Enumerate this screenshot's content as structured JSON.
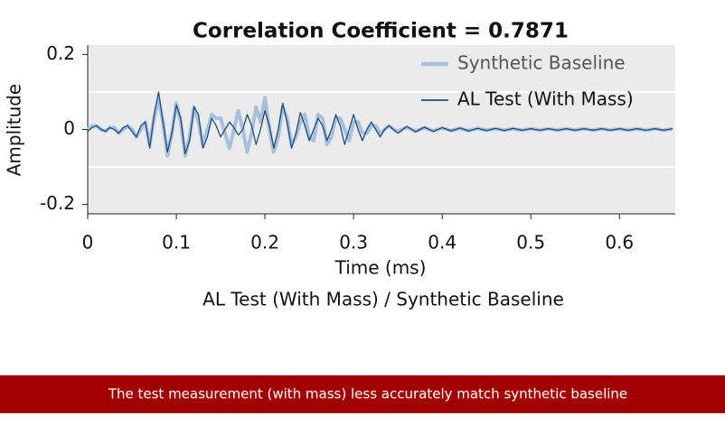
{
  "chart_data": {
    "type": "line",
    "title": "Correlation Coefficient = 0.7871",
    "subtitle": "AL Test (With Mass) / Synthetic Baseline",
    "x_label": "Time (ms)",
    "y_label": "Amplitude",
    "x": [
      0,
      0.005,
      0.01,
      0.015,
      0.02,
      0.025,
      0.03,
      0.035,
      0.04,
      0.045,
      0.05,
      0.055,
      0.06,
      0.065,
      0.07,
      0.075,
      0.08,
      0.085,
      0.09,
      0.095,
      0.1,
      0.105,
      0.11,
      0.115,
      0.12,
      0.125,
      0.13,
      0.135,
      0.14,
      0.145,
      0.15,
      0.155,
      0.16,
      0.165,
      0.17,
      0.175,
      0.18,
      0.185,
      0.19,
      0.195,
      0.2,
      0.205,
      0.21,
      0.215,
      0.22,
      0.225,
      0.23,
      0.235,
      0.24,
      0.245,
      0.25,
      0.255,
      0.26,
      0.265,
      0.27,
      0.275,
      0.28,
      0.285,
      0.29,
      0.295,
      0.3,
      0.305,
      0.31,
      0.315,
      0.32,
      0.325,
      0.33,
      0.335,
      0.34,
      0.345,
      0.35,
      0.36,
      0.37,
      0.38,
      0.39,
      0.4,
      0.41,
      0.42,
      0.43,
      0.44,
      0.45,
      0.46,
      0.47,
      0.48,
      0.49,
      0.5,
      0.51,
      0.52,
      0.53,
      0.54,
      0.55,
      0.56,
      0.57,
      0.58,
      0.59,
      0.6,
      0.61,
      0.62,
      0.63,
      0.64,
      0.65,
      0.66
    ],
    "series": [
      {
        "name": "Synthetic Baseline",
        "color": "#a9c0dd",
        "width": 4,
        "values": [
          0,
          0.01,
          0.01,
          0,
          -0.005,
          0.005,
          0.005,
          -0.01,
          0,
          0.01,
          0,
          -0.02,
          0,
          0.02,
          -0.04,
          0.03,
          0.08,
          0.02,
          -0.07,
          -0.01,
          0.07,
          0.02,
          -0.07,
          -0.02,
          0.06,
          0.02,
          -0.04,
          0,
          0.04,
          0.03,
          0.03,
          -0.01,
          -0.05,
          0,
          0.05,
          0,
          -0.06,
          -0.01,
          0.06,
          0.02,
          0.085,
          0,
          -0.06,
          -0.02,
          0.06,
          0.03,
          -0.04,
          -0.02,
          0.02,
          0.04,
          -0.02,
          -0.03,
          0.04,
          0.03,
          -0.04,
          -0.02,
          0.03,
          0.03,
          0,
          -0.03,
          0.02,
          0.02,
          -0.01,
          -0.01,
          0.01,
          0.01,
          -0.01,
          0,
          0.01,
          0,
          -0.005,
          0.006,
          -0.005,
          0.005,
          -0.004,
          0.004,
          -0.003,
          0.003,
          -0.003,
          0.003,
          -0.002,
          0.002,
          -0.002,
          0.002,
          -0.002,
          0.002,
          -0.002,
          0.002,
          -0.002,
          0.002,
          -0.002,
          0.002,
          -0.002,
          0.002,
          -0.002,
          0.002,
          -0.002,
          0.002,
          -0.002,
          0.002,
          -0.002,
          0.002
        ]
      },
      {
        "name": "AL Test (With Mass)",
        "color": "#1f4e79",
        "width": 1.3,
        "values": [
          -0.005,
          0.005,
          0.01,
          0,
          -0.005,
          0.005,
          0,
          -0.01,
          0.005,
          0.01,
          -0.005,
          -0.02,
          0.01,
          0.02,
          -0.05,
          0.04,
          0.1,
          0.02,
          -0.06,
          -0.01,
          0.065,
          0.03,
          -0.065,
          -0.03,
          0.06,
          0.04,
          -0.05,
          -0.02,
          0.03,
          0.01,
          -0.02,
          0,
          0.02,
          0.005,
          -0.015,
          0,
          0.04,
          0.01,
          -0.04,
          0,
          0.05,
          0.01,
          -0.05,
          0,
          0.07,
          0.02,
          -0.05,
          -0.01,
          0.045,
          0.01,
          -0.03,
          0,
          0.03,
          0.01,
          -0.03,
          0,
          0.04,
          0.01,
          -0.04,
          0,
          0.04,
          0,
          -0.03,
          0,
          0.02,
          0,
          -0.02,
          0,
          0.01,
          0,
          -0.01,
          0.008,
          -0.006,
          0.006,
          -0.005,
          0.005,
          -0.004,
          0.004,
          -0.004,
          0.003,
          -0.003,
          0.003,
          -0.003,
          0.003,
          -0.002,
          0.002,
          -0.002,
          0.002,
          -0.002,
          0.002,
          -0.002,
          0.002,
          -0.002,
          0.002,
          -0.002,
          0.002,
          -0.002,
          0.002,
          -0.002,
          0.002,
          -0.002,
          0.002
        ]
      }
    ],
    "xlim": [
      0,
      0.663
    ],
    "ylim": [
      -0.225,
      0.225
    ],
    "xticks": [
      0,
      0.1,
      0.2,
      0.3,
      0.4,
      0.5,
      0.6
    ],
    "yticks": [
      -0.2,
      0,
      0.2
    ],
    "gridlines": [
      -0.1,
      0.1
    ],
    "legend": "upper right"
  },
  "banner": {
    "text": "The test measurement (with mass) less accurately match synthetic baseline"
  }
}
